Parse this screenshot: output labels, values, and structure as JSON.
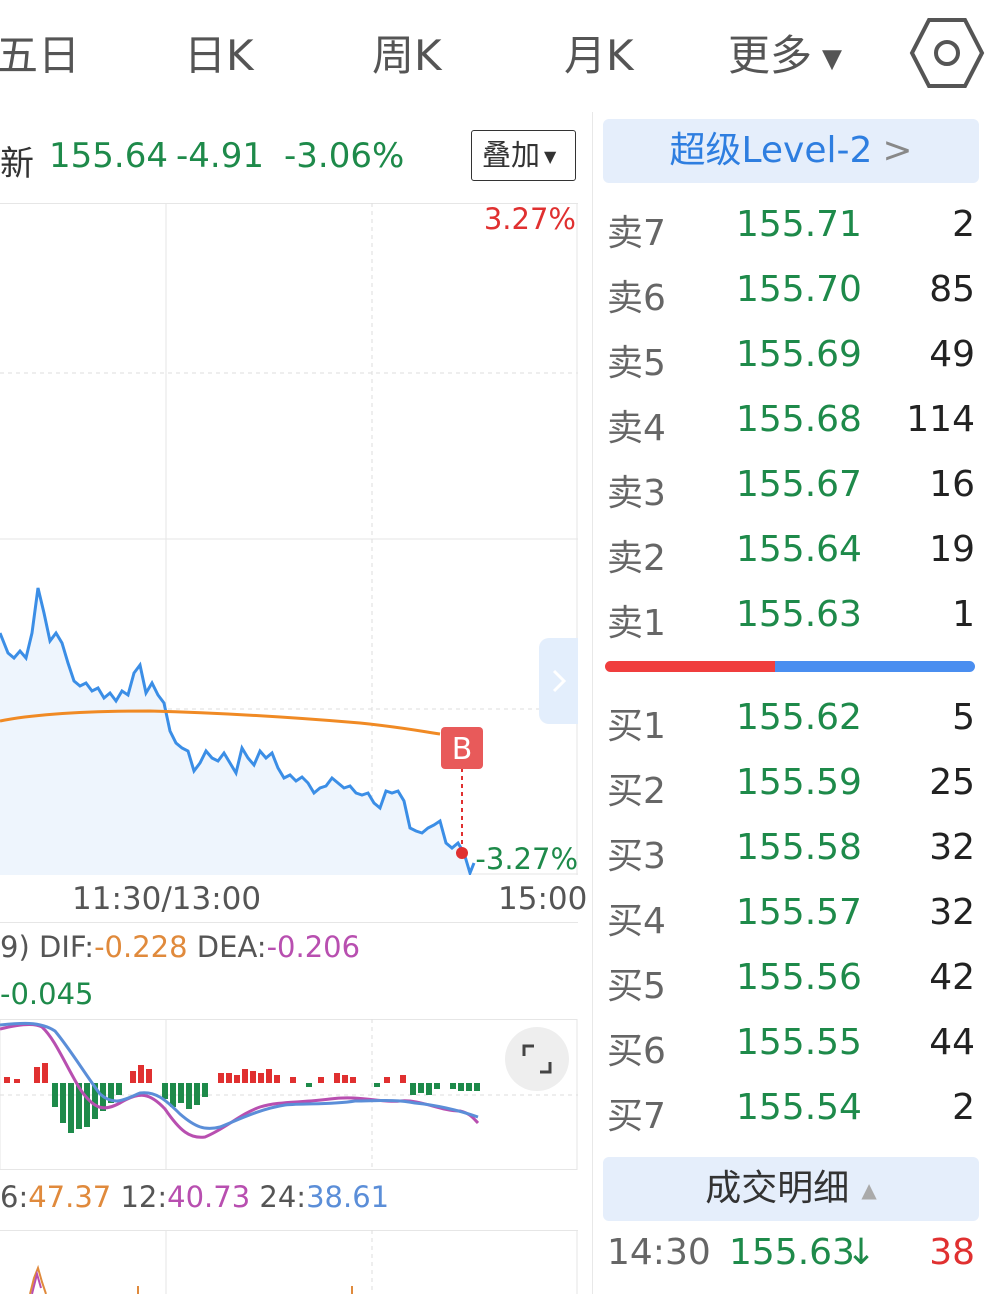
{
  "tabs": [
    {
      "label": "五日"
    },
    {
      "label": "日K"
    },
    {
      "label": "周K"
    },
    {
      "label": "月K"
    },
    {
      "label": "更多"
    }
  ],
  "header": {
    "latest_label": "新",
    "price": "155.64",
    "change": "-4.91",
    "change_pct": "-3.06%",
    "overlay_button": "叠加"
  },
  "chart": {
    "top_right_pct": "3.27%",
    "bottom_right_pct": "-3.27%",
    "marker_label": "B",
    "time_labels": [
      "11:30/13:00",
      "15:00"
    ]
  },
  "macd": {
    "prefix": "9)",
    "dif_label": "DIF:",
    "dif_value": "-0.228",
    "dea_label": "DEA:",
    "dea_value": "-0.206",
    "macd_value": "-0.045"
  },
  "rsi": {
    "prefix": "6:",
    "rsi6": "47.37",
    "rsi12_label": "12:",
    "rsi12": "40.73",
    "rsi24_label": "24:",
    "rsi24": "38.61"
  },
  "level2": {
    "banner": "超级Level-2",
    "chevron": ">"
  },
  "order_book": {
    "asks": [
      {
        "label": "卖7",
        "price": "155.71",
        "volume": "2"
      },
      {
        "label": "卖6",
        "price": "155.70",
        "volume": "85"
      },
      {
        "label": "卖5",
        "price": "155.69",
        "volume": "49"
      },
      {
        "label": "卖4",
        "price": "155.68",
        "volume": "114"
      },
      {
        "label": "卖3",
        "price": "155.67",
        "volume": "16"
      },
      {
        "label": "卖2",
        "price": "155.64",
        "volume": "19"
      },
      {
        "label": "卖1",
        "price": "155.63",
        "volume": "1"
      }
    ],
    "bids": [
      {
        "label": "买1",
        "price": "155.62",
        "volume": "5"
      },
      {
        "label": "买2",
        "price": "155.59",
        "volume": "25"
      },
      {
        "label": "买3",
        "price": "155.58",
        "volume": "32"
      },
      {
        "label": "买4",
        "price": "155.57",
        "volume": "32"
      },
      {
        "label": "买5",
        "price": "155.56",
        "volume": "42"
      },
      {
        "label": "买6",
        "price": "155.55",
        "volume": "44"
      },
      {
        "label": "买7",
        "price": "155.54",
        "volume": "2"
      }
    ],
    "buy_ratio": 0.46
  },
  "trades": {
    "banner": "成交明细",
    "rows": [
      {
        "time": "14:30",
        "price": "155.63",
        "arrow": "↓",
        "volume": "38"
      }
    ]
  },
  "colors": {
    "up": "#e03030",
    "down": "#1e8a4a",
    "price_line": "#3b8ee6",
    "avg_line": "#f08a24",
    "dif": "#e08a3c",
    "dea": "#b84fb0",
    "accent": "#2e7ee0"
  }
}
